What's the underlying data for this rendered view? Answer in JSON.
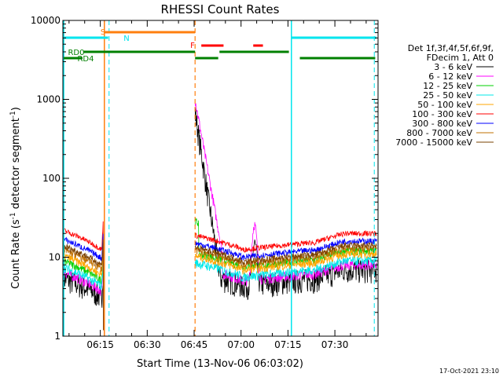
{
  "chart_data": {
    "type": "line",
    "title": "RHESSI Count Rates",
    "xlabel": "Start Time (13-Nov-06 06:03:02)",
    "ylabel_main": "Count Rate (s",
    "ylabel_sup": "-1",
    "ylabel_rest": " detector segment",
    "ylabel_sup2": "-1",
    "ylabel_end": ")",
    "y_scale": "log",
    "ylim": [
      1,
      10000
    ],
    "x_ticks": [
      "06:15",
      "06:30",
      "06:45",
      "07:00",
      "07:15",
      "07:30"
    ],
    "x_tick_minutes": [
      375,
      390,
      405,
      420,
      435,
      450
    ],
    "xlim_minutes": [
      363.03,
      463.8
    ],
    "y_ticks": [
      "1",
      "10",
      "100",
      "1000",
      "10000"
    ],
    "y_tick_values": [
      1,
      10,
      100,
      1000,
      10000
    ],
    "grid": false,
    "legend_position": "right",
    "legend_header": [
      "Det 1f,3f,4f,5f,6f,9f,",
      "FDecim 1, Att 0"
    ],
    "series": [
      {
        "name": "3 - 6 keV",
        "color": "#000000"
      },
      {
        "name": "6 - 12 keV",
        "color": "#ff00ff"
      },
      {
        "name": "12 - 25 keV",
        "color": "#00d000"
      },
      {
        "name": "25 - 50 keV",
        "color": "#00e8e8"
      },
      {
        "name": "50 - 100 keV",
        "color": "#ffa500"
      },
      {
        "name": "100 - 300 keV",
        "color": "#ff0000"
      },
      {
        "name": "300 - 800 keV",
        "color": "#0000ff"
      },
      {
        "name": "800 - 7000 keV",
        "color": "#c07000"
      },
      {
        "name": "7000 - 15000 keV",
        "color": "#7a4000"
      }
    ],
    "annotations": {
      "S": "S",
      "N": "N",
      "F": "F",
      "RD0": "RD0",
      "RD4": "RD4"
    },
    "timestamp": "17-Oct-2021 23:10"
  }
}
